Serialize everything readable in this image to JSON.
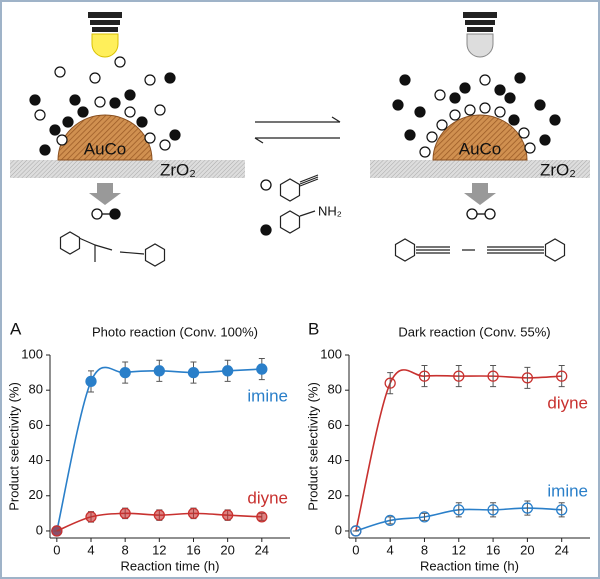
{
  "diagram": {
    "left_particle": "AuCo",
    "left_support": "ZrO₂",
    "right_particle": "AuCo",
    "right_support": "ZrO₂",
    "amine_group": "NH₂"
  },
  "chart_data": [
    {
      "type": "line",
      "panel": "A",
      "title": "Photo reaction (Conv. 100%)",
      "x_label": "Reaction time (h)",
      "y_label": "Product selectivity (%)",
      "x": [
        0,
        4,
        8,
        12,
        16,
        20,
        24
      ],
      "xlim": [
        -0.8,
        27.3
      ],
      "xticks": [
        0,
        4,
        8,
        12,
        16,
        20,
        24
      ],
      "ylim": [
        -4,
        100
      ],
      "yticks": [
        0,
        20,
        40,
        60,
        80,
        100
      ],
      "marker": "filled",
      "series": [
        {
          "name": "imine",
          "color": "#2a7fc9",
          "values": [
            0,
            85,
            90,
            91,
            90,
            91,
            92
          ],
          "error": [
            0,
            6,
            6,
            6,
            6,
            6,
            6
          ]
        },
        {
          "name": "diyne",
          "color": "#c8312f",
          "values": [
            0,
            8,
            10,
            9,
            10,
            9,
            8
          ],
          "error": [
            0,
            3,
            3,
            3,
            3,
            3,
            2
          ]
        }
      ]
    },
    {
      "type": "line",
      "panel": "B",
      "title": "Dark reaction (Conv. 55%)",
      "x_label": "Reaction time (h)",
      "y_label": "Product selectivity (%)",
      "x": [
        0,
        4,
        8,
        12,
        16,
        20,
        24
      ],
      "xlim": [
        -0.8,
        27.3
      ],
      "xticks": [
        0,
        4,
        8,
        12,
        16,
        20,
        24
      ],
      "ylim": [
        -4,
        100
      ],
      "yticks": [
        0,
        20,
        40,
        60,
        80,
        100
      ],
      "marker": "open",
      "series": [
        {
          "name": "diyne",
          "color": "#c8312f",
          "values": [
            0,
            84,
            88,
            88,
            88,
            87,
            88
          ],
          "error": [
            0,
            6,
            6,
            6,
            6,
            6,
            6
          ]
        },
        {
          "name": "imine",
          "color": "#2a7fc9",
          "values": [
            0,
            6,
            8,
            12,
            12,
            13,
            12
          ],
          "error": [
            0,
            2,
            2,
            4,
            4,
            4,
            4
          ]
        }
      ]
    }
  ]
}
